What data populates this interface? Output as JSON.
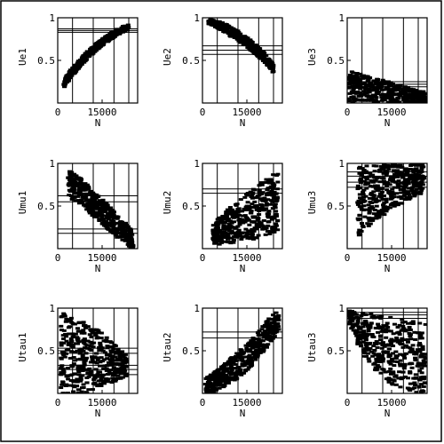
{
  "chart_data": [
    {
      "type": "scatter",
      "ylabel": "Ue1",
      "xlabel": "N",
      "xlim": [
        0,
        27000
      ],
      "ylim": [
        0,
        1
      ],
      "x_ticks": [
        0,
        15000
      ],
      "y_ticks": [
        0.5,
        1
      ],
      "x_tick_labels": [
        "0",
        "15000"
      ],
      "y_tick_labels": [
        "0.5",
        "1"
      ],
      "hlines": [
        0.83,
        0.85,
        0.87
      ],
      "vlines": [
        5000,
        12000,
        19000,
        24000
      ],
      "band": {
        "x": [
          2000,
          4500,
          7000,
          9500,
          12000,
          14500,
          17000,
          19500,
          22000,
          24000
        ],
        "lo": [
          0.17,
          0.3,
          0.4,
          0.5,
          0.58,
          0.66,
          0.72,
          0.78,
          0.83,
          0.86
        ],
        "hi": [
          0.27,
          0.4,
          0.5,
          0.59,
          0.67,
          0.74,
          0.8,
          0.86,
          0.9,
          0.92
        ]
      },
      "grid": false
    },
    {
      "type": "scatter",
      "ylabel": "Ue2",
      "xlabel": "N",
      "xlim": [
        0,
        27000
      ],
      "ylim": [
        0,
        1
      ],
      "x_ticks": [
        0,
        15000
      ],
      "y_ticks": [
        0.5,
        1
      ],
      "x_tick_labels": [
        "0",
        "15000"
      ],
      "y_tick_labels": [
        "0.5",
        "1"
      ],
      "hlines": [
        0.57,
        0.62,
        0.67
      ],
      "vlines": [
        5000,
        12000,
        19000,
        24000
      ],
      "band": {
        "x": [
          2000,
          4500,
          7000,
          9500,
          12000,
          14500,
          17000,
          19500,
          22000,
          24000
        ],
        "lo": [
          0.93,
          0.89,
          0.84,
          0.78,
          0.73,
          0.67,
          0.6,
          0.52,
          0.44,
          0.35
        ],
        "hi": [
          0.99,
          0.97,
          0.94,
          0.9,
          0.85,
          0.79,
          0.72,
          0.64,
          0.55,
          0.46
        ]
      },
      "grid": false
    },
    {
      "type": "scatter",
      "ylabel": "Ue3",
      "xlabel": "N",
      "xlim": [
        0,
        27000
      ],
      "ylim": [
        0,
        1
      ],
      "x_ticks": [
        0,
        15000
      ],
      "y_ticks": [
        0.5,
        1
      ],
      "x_tick_labels": [
        "0",
        "15000"
      ],
      "y_tick_labels": [
        "0.5",
        "1"
      ],
      "hlines": [
        0.19,
        0.22,
        0.25
      ],
      "vlines": [
        5000,
        12000,
        19000,
        24000
      ],
      "band": {
        "x": [
          500,
          3000,
          6000,
          9000,
          12000,
          15000,
          18000,
          21000,
          24000,
          26500
        ],
        "lo": [
          0.0,
          0.0,
          0.0,
          0.0,
          0.0,
          0.0,
          0.0,
          0.0,
          0.0,
          0.0
        ],
        "hi": [
          0.38,
          0.36,
          0.33,
          0.3,
          0.27,
          0.24,
          0.21,
          0.18,
          0.15,
          0.13
        ]
      },
      "grid": false
    },
    {
      "type": "scatter",
      "ylabel": "Umu1",
      "xlabel": "N",
      "xlim": [
        0,
        27000
      ],
      "ylim": [
        0,
        1
      ],
      "x_ticks": [
        0,
        15000
      ],
      "y_ticks": [
        0.5,
        1
      ],
      "x_tick_labels": [
        "0",
        "15000"
      ],
      "y_tick_labels": [
        "0.5",
        "1"
      ],
      "hlines": [
        0.18,
        0.23,
        0.55,
        0.62
      ],
      "vlines": [
        5000,
        12000,
        19000,
        24000
      ],
      "band": {
        "x": [
          3500,
          6000,
          8500,
          11000,
          13500,
          16000,
          18500,
          21000,
          23500,
          25500
        ],
        "lo": [
          0.6,
          0.55,
          0.48,
          0.4,
          0.33,
          0.26,
          0.18,
          0.1,
          0.04,
          0.0
        ],
        "hi": [
          0.95,
          0.88,
          0.8,
          0.72,
          0.63,
          0.55,
          0.46,
          0.37,
          0.28,
          0.2
        ]
      },
      "grid": false
    },
    {
      "type": "scatter",
      "ylabel": "Umu2",
      "xlabel": "N",
      "xlim": [
        0,
        27000
      ],
      "ylim": [
        0,
        1
      ],
      "x_ticks": [
        0,
        15000
      ],
      "y_ticks": [
        0.5,
        1
      ],
      "x_tick_labels": [
        "0",
        "15000"
      ],
      "y_tick_labels": [
        "0.5",
        "1"
      ],
      "hlines": [
        0.65,
        0.7
      ],
      "vlines": [
        5000,
        12000,
        19000,
        24000
      ],
      "band": {
        "x": [
          3500,
          6000,
          8500,
          11000,
          13500,
          16000,
          18500,
          21000,
          23500,
          25500
        ],
        "lo": [
          0.05,
          0.05,
          0.06,
          0.07,
          0.08,
          0.1,
          0.12,
          0.14,
          0.16,
          0.18
        ],
        "hi": [
          0.3,
          0.38,
          0.46,
          0.53,
          0.6,
          0.67,
          0.74,
          0.8,
          0.86,
          0.92
        ]
      },
      "grid": false
    },
    {
      "type": "scatter",
      "ylabel": "Umu3",
      "xlabel": "N",
      "xlim": [
        0,
        27000
      ],
      "ylim": [
        0,
        1
      ],
      "x_ticks": [
        0,
        15000
      ],
      "y_ticks": [
        0.5,
        1
      ],
      "x_tick_labels": [
        "0",
        "15000"
      ],
      "y_tick_labels": [
        "0.5",
        "1"
      ],
      "hlines": [
        0.72,
        0.78,
        0.85,
        0.9
      ],
      "vlines": [
        5000,
        12000,
        19000,
        24000
      ],
      "band": {
        "x": [
          3500,
          6000,
          8500,
          11000,
          13500,
          16000,
          18500,
          21000,
          23500,
          26000
        ],
        "lo": [
          0.14,
          0.22,
          0.3,
          0.36,
          0.42,
          0.48,
          0.53,
          0.57,
          0.62,
          0.66
        ],
        "hi": [
          0.95,
          0.97,
          0.98,
          0.99,
          1.0,
          1.0,
          1.0,
          1.0,
          1.0,
          1.0
        ]
      },
      "grid": false
    },
    {
      "type": "scatter",
      "ylabel": "Utau1",
      "xlabel": "N",
      "xlim": [
        0,
        27000
      ],
      "ylim": [
        0,
        1
      ],
      "x_ticks": [
        0,
        15000
      ],
      "y_ticks": [
        0.5,
        1
      ],
      "x_tick_labels": [
        "0",
        "15000"
      ],
      "y_tick_labels": [
        "0.5",
        "1"
      ],
      "hlines": [
        0.22,
        0.28,
        0.33,
        0.47,
        0.53
      ],
      "vlines": [
        5000,
        12000,
        19000,
        24000
      ],
      "band": {
        "x": [
          1000,
          3500,
          6000,
          8500,
          11000,
          13500,
          16000,
          18500,
          21000,
          23500
        ],
        "lo": [
          0.0,
          0.0,
          0.0,
          0.0,
          0.0,
          0.05,
          0.08,
          0.12,
          0.15,
          0.2
        ],
        "hi": [
          0.95,
          0.92,
          0.88,
          0.84,
          0.8,
          0.75,
          0.68,
          0.6,
          0.52,
          0.44
        ]
      },
      "grid": false
    },
    {
      "type": "scatter",
      "ylabel": "Utau2",
      "xlabel": "N",
      "xlim": [
        0,
        27000
      ],
      "ylim": [
        0,
        1
      ],
      "x_ticks": [
        0,
        15000
      ],
      "y_ticks": [
        0.5,
        1
      ],
      "x_tick_labels": [
        "0",
        "15000"
      ],
      "y_tick_labels": [
        "0.5",
        "1"
      ],
      "hlines": [
        0.65,
        0.72
      ],
      "vlines": [
        5000,
        12000,
        19000,
        24000
      ],
      "band": {
        "x": [
          1000,
          3500,
          6000,
          8500,
          11000,
          13500,
          16000,
          18500,
          21000,
          23500,
          26000
        ],
        "lo": [
          0.0,
          0.0,
          0.05,
          0.1,
          0.15,
          0.22,
          0.3,
          0.4,
          0.5,
          0.62,
          0.75
        ],
        "hi": [
          0.18,
          0.24,
          0.3,
          0.38,
          0.46,
          0.54,
          0.62,
          0.72,
          0.82,
          0.92,
          0.98
        ]
      },
      "grid": false
    },
    {
      "type": "scatter",
      "ylabel": "Utau3",
      "xlabel": "N",
      "xlim": [
        0,
        27000
      ],
      "ylim": [
        0,
        1
      ],
      "x_ticks": [
        0,
        15000
      ],
      "y_ticks": [
        0.5,
        1
      ],
      "x_tick_labels": [
        "0",
        "15000"
      ],
      "y_tick_labels": [
        "0.5",
        "1"
      ],
      "hlines": [
        0.88,
        0.92,
        0.95
      ],
      "vlines": [
        5000,
        12000,
        19000,
        24000
      ],
      "band": {
        "x": [
          500,
          3000,
          6000,
          9000,
          12000,
          15000,
          18000,
          21000,
          24000,
          26500
        ],
        "lo": [
          0.85,
          0.6,
          0.4,
          0.28,
          0.18,
          0.1,
          0.05,
          0.0,
          0.0,
          0.0
        ],
        "hi": [
          0.98,
          0.96,
          0.95,
          0.93,
          0.92,
          0.9,
          0.88,
          0.86,
          0.84,
          0.82
        ]
      },
      "grid": false
    }
  ],
  "colors": {
    "ink": "#000000",
    "background": "#ffffff"
  }
}
